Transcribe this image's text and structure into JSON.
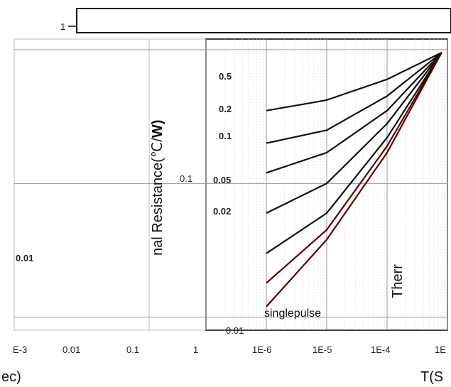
{
  "chart_data": {
    "type": "line",
    "title": "",
    "xlabel_left": "ec)",
    "xlabel_right": "T(S",
    "ylabel_main": "nal Resistance(℃/",
    "ylabel_bold": "W)",
    "ylabel_right": "Therr",
    "y_ticks": [
      "1",
      "0.1",
      "0.01"
    ],
    "x_ticks_left": [
      "E-3",
      "0.01",
      "0.1",
      "1"
    ],
    "x_ticks_right": [
      "1E-6",
      "1E-5",
      "1E-4",
      "1E"
    ],
    "duty_labels": [
      "0.5",
      "0.2",
      "0.1",
      "0.05",
      "0.02",
      "0.01",
      "singlepulse"
    ],
    "series": [
      {
        "name": "0.5",
        "x": [
          1e-06,
          1e-05,
          0.0001,
          0.0008
        ],
        "y": [
          0.35,
          0.42,
          0.6,
          0.95
        ]
      },
      {
        "name": "0.2",
        "x": [
          1e-06,
          1e-05,
          0.0001,
          0.0008
        ],
        "y": [
          0.2,
          0.25,
          0.45,
          0.95
        ]
      },
      {
        "name": "0.1",
        "x": [
          1e-06,
          1e-05,
          0.0001,
          0.0008
        ],
        "y": [
          0.12,
          0.17,
          0.35,
          0.95
        ]
      },
      {
        "name": "0.05",
        "x": [
          1e-06,
          1e-05,
          0.0001,
          0.0008
        ],
        "y": [
          0.06,
          0.1,
          0.28,
          0.95
        ]
      },
      {
        "name": "0.02",
        "x": [
          1e-06,
          1e-05,
          0.0001,
          0.0008
        ],
        "y": [
          0.03,
          0.06,
          0.22,
          0.95
        ]
      },
      {
        "name": "0.01",
        "x": [
          1e-06,
          1e-05,
          0.0001,
          0.0008
        ],
        "y": [
          0.018,
          0.045,
          0.19,
          0.95
        ]
      },
      {
        "name": "singlepulse",
        "x": [
          1e-06,
          1e-05,
          0.0001,
          0.0008
        ],
        "y": [
          0.012,
          0.038,
          0.17,
          0.95
        ]
      }
    ],
    "grid": true,
    "scale": "log-log"
  }
}
